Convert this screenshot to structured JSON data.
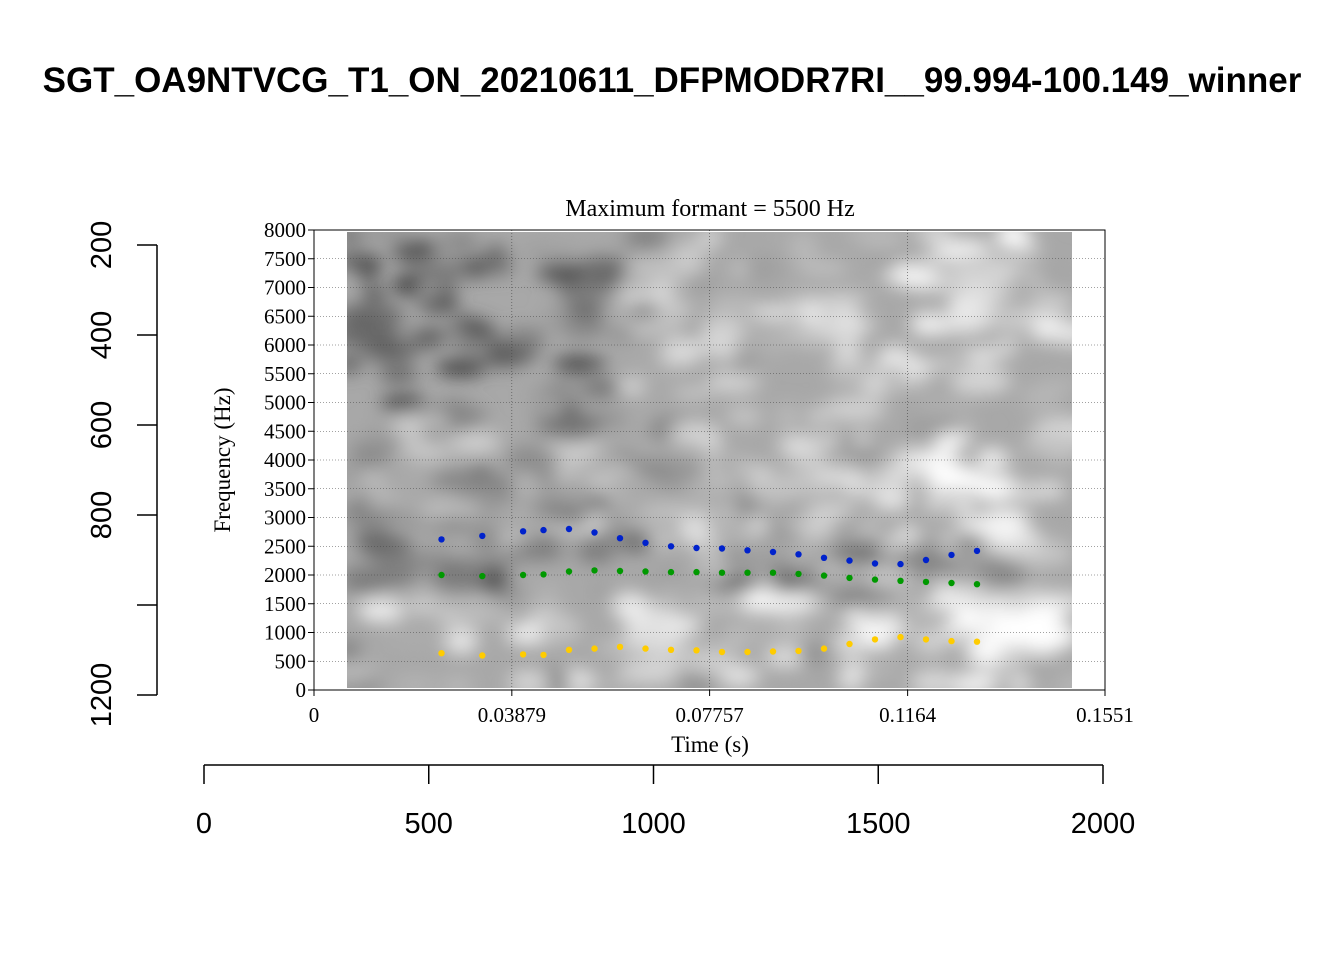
{
  "title": "SGT_OA9NTVCG_T1_ON_20210611_DFPMODR7RI__99.994-100.149_winner",
  "chart_data": [
    {
      "type": "scatter",
      "title": "Maximum formant = 5500 Hz",
      "xlabel": "Time (s)",
      "ylabel": "Frequency (Hz)",
      "xlim": [
        0,
        0.1551
      ],
      "ylim": [
        0,
        8000
      ],
      "xticks": [
        "0",
        "0.03879",
        "0.07757",
        "0.1164",
        "0.1551"
      ],
      "yticks": [
        "0",
        "500",
        "1000",
        "1500",
        "2000",
        "2500",
        "3000",
        "3500",
        "4000",
        "4500",
        "5000",
        "5500",
        "6000",
        "6500",
        "7000",
        "7500",
        "8000"
      ],
      "grid": true,
      "background": "spectrogram (grayscale)",
      "series": [
        {
          "color": "#0022cc",
          "x": [
            0.025,
            0.033,
            0.041,
            0.045,
            0.05,
            0.055,
            0.06,
            0.065,
            0.07,
            0.075,
            0.08,
            0.085,
            0.09,
            0.095,
            0.1,
            0.105,
            0.11,
            0.115,
            0.12,
            0.125,
            0.13
          ],
          "values": [
            2620,
            2680,
            2760,
            2780,
            2800,
            2740,
            2640,
            2560,
            2500,
            2470,
            2460,
            2430,
            2400,
            2360,
            2300,
            2250,
            2200,
            2190,
            2260,
            2350,
            2420
          ]
        },
        {
          "color": "#009900",
          "x": [
            0.025,
            0.033,
            0.041,
            0.045,
            0.05,
            0.055,
            0.06,
            0.065,
            0.07,
            0.075,
            0.08,
            0.085,
            0.09,
            0.095,
            0.1,
            0.105,
            0.11,
            0.115,
            0.12,
            0.125,
            0.13
          ],
          "values": [
            2000,
            1980,
            2000,
            2010,
            2060,
            2080,
            2070,
            2060,
            2050,
            2050,
            2040,
            2040,
            2040,
            2020,
            1990,
            1950,
            1920,
            1900,
            1880,
            1860,
            1840
          ]
        },
        {
          "color": "#ffcc00",
          "x": [
            0.025,
            0.033,
            0.041,
            0.045,
            0.05,
            0.055,
            0.06,
            0.065,
            0.07,
            0.075,
            0.08,
            0.085,
            0.09,
            0.095,
            0.1,
            0.105,
            0.11,
            0.115,
            0.12,
            0.125,
            0.13
          ],
          "values": [
            640,
            600,
            620,
            610,
            700,
            720,
            750,
            720,
            700,
            690,
            660,
            660,
            670,
            680,
            720,
            800,
            880,
            920,
            880,
            850,
            840
          ]
        }
      ]
    },
    {
      "type": "axes",
      "xlim": [
        0,
        2000
      ],
      "xticks": [
        "0",
        "500",
        "1000",
        "1500",
        "2000"
      ],
      "ylim": [
        1200,
        200
      ],
      "yticks": [
        "200",
        "400",
        "600",
        "800",
        "1200"
      ]
    }
  ]
}
